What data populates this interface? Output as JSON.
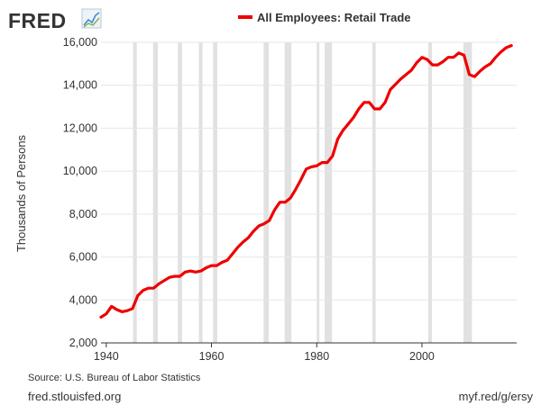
{
  "brand": {
    "logo_text": "FRED",
    "logo_icon": "line-graph-icon"
  },
  "colors": {
    "series": "#ee0000",
    "recession": "#e1e1e1",
    "grid": "#e6e6e6",
    "axis": "#333333"
  },
  "footer": {
    "source": "Source: U.S. Bureau of Labor Statistics",
    "site": "fred.stlouisfed.org",
    "short_link": "myf.red/g/ersy"
  },
  "chart_data": {
    "type": "line",
    "title": "",
    "xlabel": "",
    "ylabel": "Thousands of Persons",
    "legend_position": "top-center",
    "grid": "horizontal",
    "xlim": [
      1939,
      2018
    ],
    "ylim": [
      2000,
      16000
    ],
    "x_ticks": [
      1940,
      1960,
      1980,
      2000
    ],
    "x_tick_labels": [
      "1940",
      "1960",
      "1980",
      "2000"
    ],
    "y_ticks": [
      2000,
      4000,
      6000,
      8000,
      10000,
      12000,
      14000,
      16000
    ],
    "y_tick_labels": [
      "2,000",
      "4,000",
      "6,000",
      "8,000",
      "10,000",
      "12,000",
      "14,000",
      "16,000"
    ],
    "recession_periods": [
      [
        1945.1,
        1945.8
      ],
      [
        1948.9,
        1949.8
      ],
      [
        1953.6,
        1954.4
      ],
      [
        1957.6,
        1958.3
      ],
      [
        1960.3,
        1961.1
      ],
      [
        1969.9,
        1970.9
      ],
      [
        1973.9,
        1975.2
      ],
      [
        1980.0,
        1980.5
      ],
      [
        1981.5,
        1982.9
      ],
      [
        1990.6,
        1991.2
      ],
      [
        2001.2,
        2001.9
      ],
      [
        2007.9,
        2009.5
      ]
    ],
    "series": [
      {
        "name": "All Employees: Retail Trade",
        "x": [
          1939,
          1940,
          1941,
          1942,
          1943,
          1944,
          1945,
          1946,
          1947,
          1948,
          1949,
          1950,
          1951,
          1952,
          1953,
          1954,
          1955,
          1956,
          1957,
          1958,
          1959,
          1960,
          1961,
          1962,
          1963,
          1964,
          1965,
          1966,
          1967,
          1968,
          1969,
          1970,
          1971,
          1972,
          1973,
          1974,
          1975,
          1976,
          1977,
          1978,
          1979,
          1980,
          1981,
          1982,
          1983,
          1984,
          1985,
          1986,
          1987,
          1988,
          1989,
          1990,
          1991,
          1992,
          1993,
          1994,
          1995,
          1996,
          1997,
          1998,
          1999,
          2000,
          2001,
          2002,
          2003,
          2004,
          2005,
          2006,
          2007,
          2008,
          2009,
          2010,
          2011,
          2012,
          2013,
          2014,
          2015,
          2016,
          2017
        ],
        "values": [
          3200,
          3350,
          3700,
          3550,
          3450,
          3500,
          3600,
          4200,
          4450,
          4550,
          4550,
          4750,
          4900,
          5050,
          5100,
          5100,
          5300,
          5350,
          5300,
          5350,
          5500,
          5600,
          5600,
          5750,
          5850,
          6150,
          6450,
          6700,
          6900,
          7200,
          7450,
          7550,
          7700,
          8200,
          8550,
          8550,
          8750,
          9150,
          9600,
          10100,
          10200,
          10250,
          10400,
          10400,
          10700,
          11500,
          11900,
          12200,
          12500,
          12900,
          13200,
          13200,
          12900,
          12900,
          13200,
          13800,
          14050,
          14300,
          14500,
          14700,
          15050,
          15300,
          15200,
          14950,
          14950,
          15100,
          15300,
          15300,
          15500,
          15400,
          14500,
          14400,
          14650,
          14850,
          15000,
          15300,
          15550,
          15750,
          15850
        ]
      }
    ]
  }
}
